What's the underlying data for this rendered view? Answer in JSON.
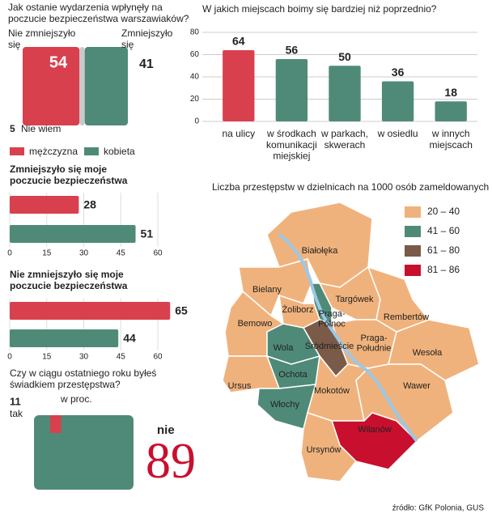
{
  "chart_data": [
    {
      "type": "pie",
      "title": "Jak ostanie wydarzenia wpłynęły na\npoczucie bezpieczeństwa warszawiaków?",
      "categories": [
        "Nie zmniejszyło\nsię",
        "Zmniejszyło\nsię",
        "Nie wiem"
      ],
      "values": [
        54,
        41,
        5
      ],
      "colors": [
        "#d9404e",
        "#4f8a78",
        "#c9c9c9"
      ]
    },
    {
      "type": "bar",
      "title": "W jakich miejscach boimy się bardziej niż poprzednio?",
      "categories": [
        "na ulicy",
        "w środkach\nkomunikacji\nmiejskiej",
        "w parkach,\nskwerach",
        "w osiedlu",
        "w innych\nmiejscach"
      ],
      "values": [
        64,
        56,
        50,
        36,
        18
      ],
      "colors": [
        "#d9404e",
        "#4f8a78",
        "#4f8a78",
        "#4f8a78",
        "#4f8a78"
      ],
      "ylim": [
        0,
        80
      ],
      "yticks": [
        0,
        20,
        40,
        60,
        80
      ],
      "grid": true
    },
    {
      "type": "barh",
      "title": "Zmniejszyło się moje\npoczucie bezpieczeństwa",
      "series": [
        {
          "name": "mężczyzna",
          "color": "#d9404e",
          "values": [
            28
          ]
        },
        {
          "name": "kobieta",
          "color": "#4f8a78",
          "values": [
            51
          ]
        }
      ],
      "xlim": [
        0,
        60
      ],
      "xticks": [
        0,
        15,
        30,
        45,
        60
      ]
    },
    {
      "type": "barh",
      "title": "Nie zmniejszyło się moje\npoczucie bezpieczeństwa",
      "series": [
        {
          "color": "#d9404e",
          "values": [
            65
          ]
        },
        {
          "color": "#4f8a78",
          "values": [
            44
          ]
        }
      ],
      "xlim": [
        0,
        60
      ],
      "xticks": [
        0,
        15,
        30,
        45,
        60
      ]
    },
    {
      "type": "pie",
      "title": "Czy w ciągu ostatniego roku byłeś\nświadkiem przestępstwa?",
      "subtitle": "w proc.",
      "categories": [
        "tak",
        "nie"
      ],
      "values": [
        11,
        89
      ],
      "colors": [
        "#d9404e",
        "#4f8a78"
      ]
    }
  ],
  "map": {
    "title": "Liczba przestępstw w dzielnicach na 1000 osób zameldowanych",
    "legend": [
      {
        "label": "20 – 40",
        "color": "#f0b27c"
      },
      {
        "label": "41 – 60",
        "color": "#4f8a78"
      },
      {
        "label": "61 – 80",
        "color": "#7a5a48"
      },
      {
        "label": "81 – 86",
        "color": "#c8102e"
      }
    ],
    "districts": [
      {
        "name": "Białołęka",
        "class": 0
      },
      {
        "name": "Bielany",
        "class": 0
      },
      {
        "name": "Targówek",
        "class": 0
      },
      {
        "name": "Praga-\nPółnoc",
        "class": 1
      },
      {
        "name": "Żoliborz",
        "class": 0
      },
      {
        "name": "Bemowo",
        "class": 0
      },
      {
        "name": "Rembertów",
        "class": 0
      },
      {
        "name": "Śródmieście",
        "class": 2
      },
      {
        "name": "Wola",
        "class": 1
      },
      {
        "name": "Praga-\nPołudnie",
        "class": 0
      },
      {
        "name": "Wesoła",
        "class": 0
      },
      {
        "name": "Ochota",
        "class": 1
      },
      {
        "name": "Ursus",
        "class": 0
      },
      {
        "name": "Włochy",
        "class": 1
      },
      {
        "name": "Mokotów",
        "class": 0
      },
      {
        "name": "Wawer",
        "class": 0
      },
      {
        "name": "Wilanów",
        "class": 3
      },
      {
        "name": "Ursynów",
        "class": 0
      }
    ]
  },
  "source": "źródło: GfK Polonia, GUS"
}
